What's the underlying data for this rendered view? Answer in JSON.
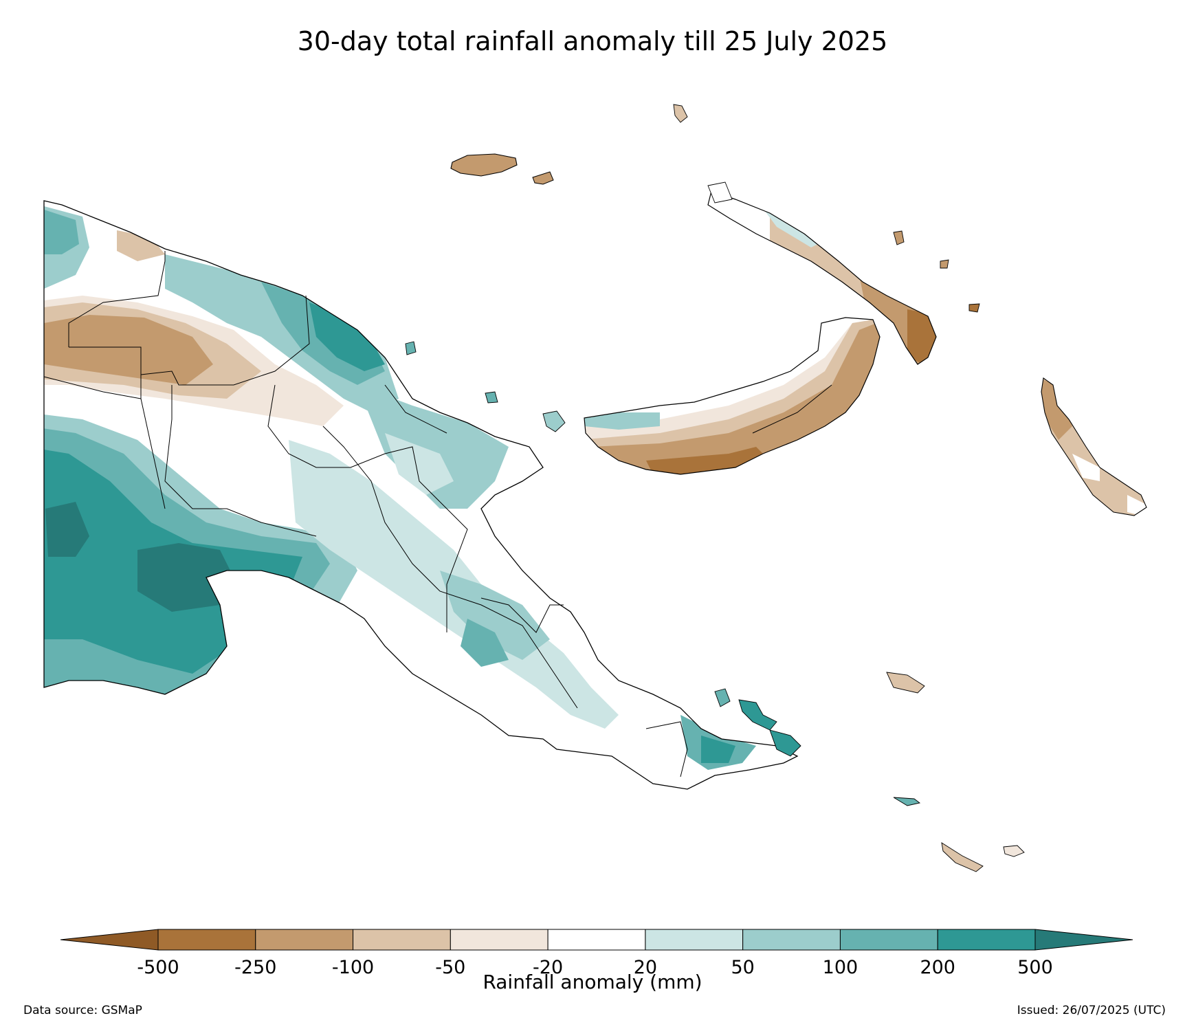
{
  "title": "30-day total rainfall anomaly till 25 July 2025",
  "colorbar": {
    "label": "Rainfall anomaly (mm)",
    "ticks": [
      "-500",
      "-250",
      "-100",
      "-50",
      "-20",
      "20",
      "50",
      "100",
      "200",
      "500"
    ],
    "bins": [
      {
        "range": "< -500",
        "color": "#8f5a26"
      },
      {
        "range": "-500 to -250",
        "color": "#a9733a"
      },
      {
        "range": "-250 to -100",
        "color": "#c39a6e"
      },
      {
        "range": "-100 to -50",
        "color": "#dcc3a8"
      },
      {
        "range": "-50 to -20",
        "color": "#f1e6dc"
      },
      {
        "range": "-20 to 20",
        "color": "#ffffff"
      },
      {
        "range": "20 to 50",
        "color": "#cce5e4"
      },
      {
        "range": "50 to 100",
        "color": "#9ccdcc"
      },
      {
        "range": "100 to 200",
        "color": "#66b2b0"
      },
      {
        "range": "200 to 500",
        "color": "#2e9894"
      },
      {
        "range": "> 500",
        "color": "#267a78"
      }
    ]
  },
  "footer": {
    "source": "Data source: GSMaP",
    "issued": "Issued: 26/07/2025 (UTC)"
  }
}
